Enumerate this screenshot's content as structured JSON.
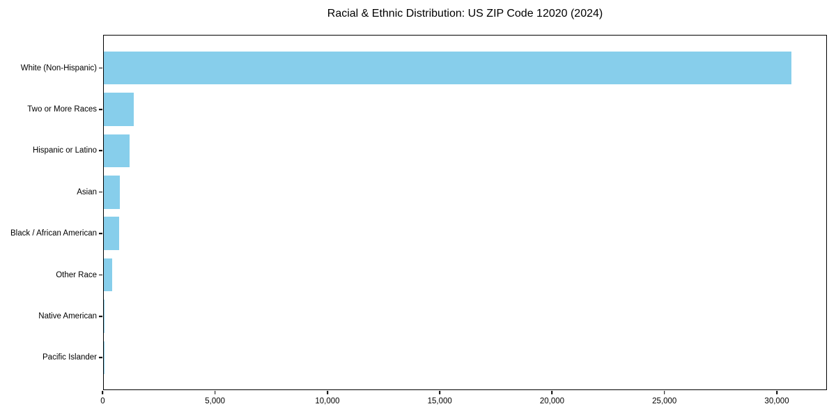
{
  "chart_data": {
    "type": "bar",
    "orientation": "horizontal",
    "title": "Racial & Ethnic Distribution: US ZIP Code 12020 (2024)",
    "categories": [
      "White (Non-Hispanic)",
      "Two or More Races",
      "Hispanic or Latino",
      "Asian",
      "Black / African American",
      "Other Race",
      "Native American",
      "Pacific Islander"
    ],
    "values": [
      30700,
      1340,
      1150,
      720,
      690,
      380,
      25,
      8
    ],
    "bar_color": "#87CEEB",
    "axis_color": "#000000",
    "text_color": "#000000",
    "background_color": "#ffffff",
    "xlabel": "",
    "ylabel": "",
    "xlim": [
      0,
      32250
    ],
    "x_ticks": [
      {
        "value": 0,
        "label": "0"
      },
      {
        "value": 5000,
        "label": "5,000"
      },
      {
        "value": 10000,
        "label": "10,000"
      },
      {
        "value": 15000,
        "label": "15,000"
      },
      {
        "value": 20000,
        "label": "20,000"
      },
      {
        "value": 25000,
        "label": "25,000"
      },
      {
        "value": 30000,
        "label": "30,000"
      }
    ],
    "grid": false,
    "legend": null,
    "bar_relative_height": 0.8
  }
}
